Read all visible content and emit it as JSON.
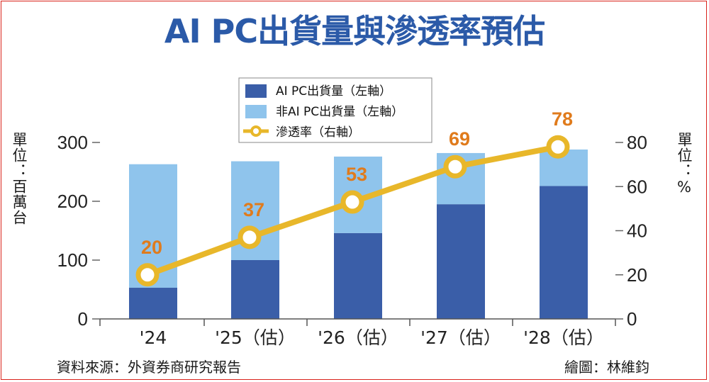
{
  "title": "AI PC出貨量與滲透率預估",
  "left_axis_label": "單位：百萬台",
  "right_axis_label": "單位：%",
  "source": "資料來源：外資券商研究報告",
  "credit": "繪圖：林維鈞",
  "colors": {
    "ai_pc": "#3a5ea8",
    "non_ai_pc": "#8fc4ec",
    "penetration": "#e8b72a",
    "label": "#e07b1c",
    "title": "#2b5aa8",
    "frame": "#d9241c"
  },
  "chart_data": {
    "type": "bar",
    "stacked": true,
    "categories": [
      "'24",
      "'25（估）",
      "'26（估）",
      "'27（估）",
      "'28（估）"
    ],
    "series": [
      {
        "name": "AI PC出貨量（左軸）",
        "values": [
          53,
          100,
          146,
          195,
          226
        ],
        "axis": "left"
      },
      {
        "name": "非AI PC出貨量（左軸）",
        "values": [
          210,
          168,
          130,
          87,
          62
        ],
        "axis": "left"
      },
      {
        "name": "滲透率（右軸）",
        "values": [
          20,
          37,
          53,
          69,
          78
        ],
        "axis": "right",
        "type": "line"
      }
    ],
    "y_left": {
      "ylim": [
        0,
        300
      ],
      "ticks": [
        0,
        100,
        200,
        300
      ]
    },
    "y_right": {
      "ylim": [
        0,
        80
      ],
      "ticks": [
        0,
        20,
        40,
        60,
        80
      ]
    },
    "legend_position": "top-center",
    "grid": false
  }
}
